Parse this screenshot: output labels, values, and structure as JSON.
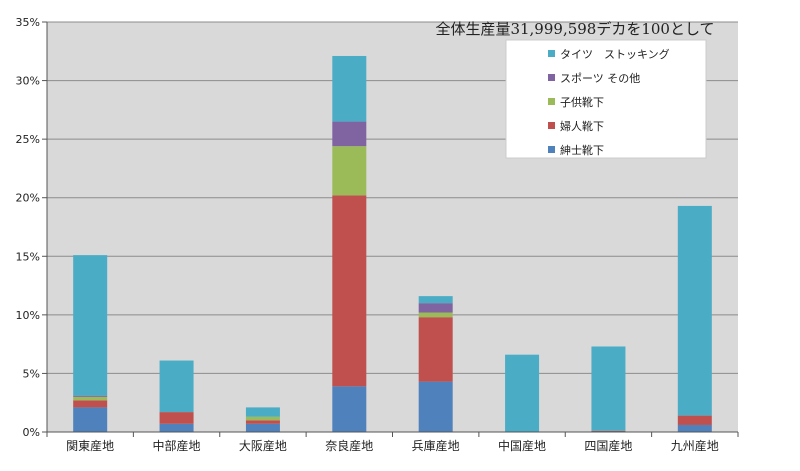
{
  "chart_data": {
    "type": "bar",
    "stacked": true,
    "title": "全体生産量31,999,598デカを100として",
    "categories": [
      "関東産地",
      "中部産地",
      "大阪産地",
      "奈良産地",
      "兵庫産地",
      "中国産地",
      "四国産地",
      "九州産地"
    ],
    "series": [
      {
        "name": "紳士靴下",
        "color": "#4f81bd",
        "values": [
          2.1,
          0.7,
          0.7,
          3.9,
          4.3,
          0.0,
          0.0,
          0.6
        ]
      },
      {
        "name": "婦人靴下",
        "color": "#c0504d",
        "values": [
          0.6,
          1.0,
          0.3,
          16.3,
          5.5,
          0.0,
          0.1,
          0.8
        ]
      },
      {
        "name": "子供靴下",
        "color": "#9bbb59",
        "values": [
          0.3,
          0.0,
          0.3,
          4.2,
          0.4,
          0.0,
          0.0,
          0.0
        ]
      },
      {
        "name": "スポーツ その他",
        "color": "#8064a2",
        "values": [
          0.1,
          0.0,
          0.0,
          2.1,
          0.8,
          0.0,
          0.0,
          0.0
        ]
      },
      {
        "name": "タイツ　ストッキング",
        "color": "#4bacc6",
        "values": [
          12.0,
          4.4,
          0.8,
          5.6,
          0.6,
          6.6,
          7.2,
          17.9
        ]
      }
    ],
    "legend_order": [
      "タイツ　ストッキング",
      "スポーツ その他",
      "子供靴下",
      "婦人靴下",
      "紳士靴下"
    ],
    "ylim": [
      0,
      35
    ],
    "yticks": [
      0,
      5,
      10,
      15,
      20,
      25,
      30,
      35
    ],
    "ytick_labels": [
      "0%",
      "5%",
      "10%",
      "15%",
      "20%",
      "25%",
      "30%",
      "35%"
    ],
    "grid": true,
    "legend_position": "top-right",
    "plot_background": "#d9d9d9"
  }
}
